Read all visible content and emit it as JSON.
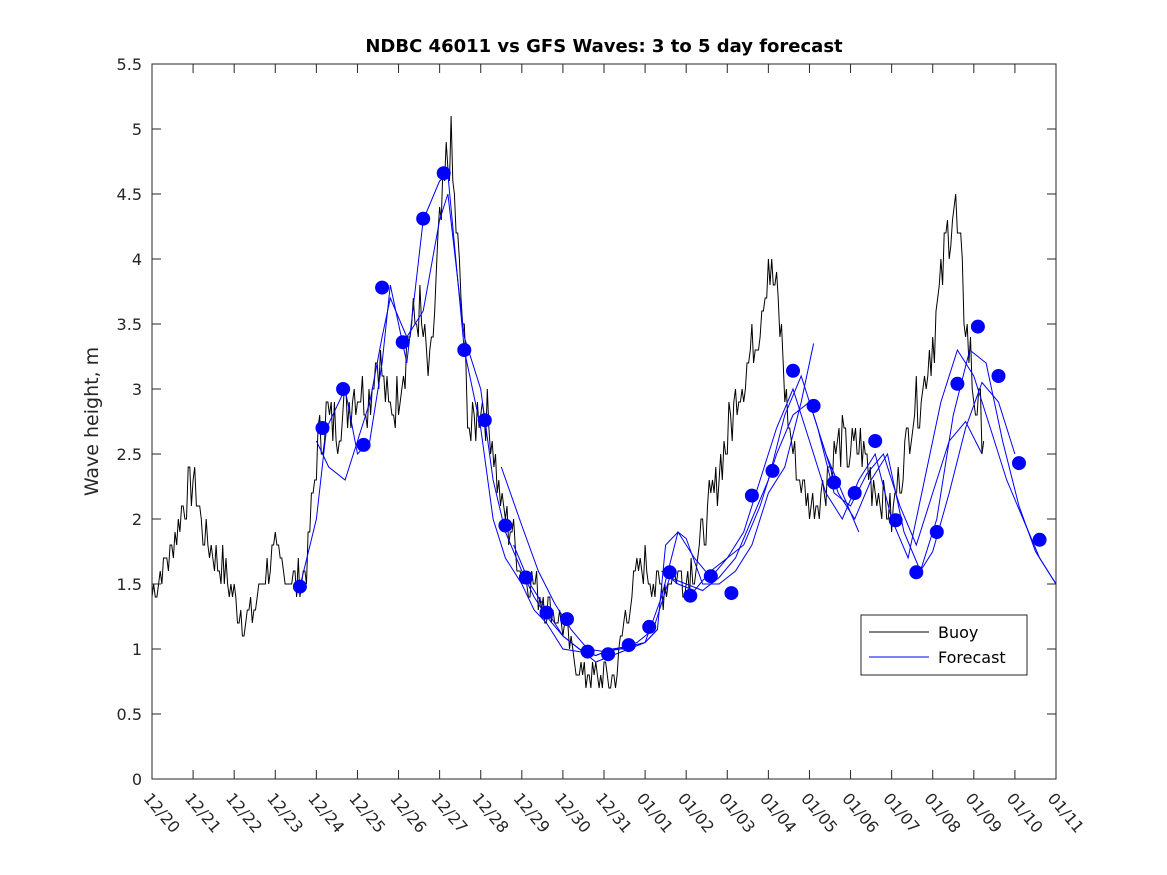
{
  "chart_data": {
    "type": "line",
    "title": "NDBC 46011 vs GFS Waves: 3 to 5 day forecast",
    "xlabel": "",
    "ylabel": "Wave height, m",
    "xlim": [
      0,
      22
    ],
    "ylim": [
      0,
      5.5
    ],
    "yticks": [
      0,
      0.5,
      1,
      1.5,
      2,
      2.5,
      3,
      3.5,
      4,
      4.5,
      5,
      5.5
    ],
    "ytick_labels": [
      "0",
      "0.5",
      "1",
      "1.5",
      "2",
      "2.5",
      "3",
      "3.5",
      "4",
      "4.5",
      "5",
      "5.5"
    ],
    "x_unit": "days since 12/20",
    "xtick_labels": [
      "12/20",
      "12/21",
      "12/22",
      "12/23",
      "12/24",
      "12/25",
      "12/26",
      "12/27",
      "12/28",
      "12/29",
      "12/30",
      "12/31",
      "01/01",
      "01/02",
      "01/03",
      "01/04",
      "01/05",
      "01/06",
      "01/07",
      "01/08",
      "01/09",
      "01/10",
      "01/11"
    ],
    "legend": {
      "position": "lower-right",
      "entries": [
        "Buoy",
        "Forecast"
      ]
    },
    "colors": {
      "buoy": "#000000",
      "forecast": "#0000ff",
      "markers": "#0000ff"
    },
    "series": [
      {
        "name": "Buoy",
        "x": [
          0,
          0.25,
          0.5,
          0.75,
          1,
          1.25,
          1.5,
          1.75,
          2,
          2.25,
          2.5,
          2.75,
          3,
          3.25,
          3.5,
          3.75,
          4,
          4.25,
          4.5,
          4.75,
          5,
          5.25,
          5.5,
          5.75,
          6,
          6.25,
          6.5,
          6.75,
          7,
          7.25,
          7.5,
          7.75,
          8,
          8.25,
          8.5,
          8.75,
          9,
          9.25,
          9.5,
          9.75,
          10,
          10.25,
          10.5,
          10.75,
          11,
          11.25,
          11.5,
          11.75,
          12,
          12.25,
          12.5,
          12.75,
          13,
          13.25,
          13.5,
          13.75,
          14,
          14.25,
          14.5,
          14.75,
          15,
          15.25,
          15.5,
          15.75,
          16,
          16.25,
          16.5,
          16.75,
          17,
          17.25,
          17.5,
          17.75,
          18,
          18.25,
          18.5,
          18.75,
          19,
          19.25,
          19.5,
          19.75,
          20,
          20.25
        ],
        "values": [
          1.45,
          1.6,
          1.8,
          2.1,
          2.3,
          1.9,
          1.75,
          1.6,
          1.4,
          1.2,
          1.3,
          1.6,
          1.7,
          1.6,
          1.5,
          1.6,
          2.5,
          2.8,
          2.7,
          2.9,
          3.0,
          2.9,
          3.3,
          2.8,
          3.0,
          3.4,
          3.6,
          3.0,
          4.2,
          4.9,
          3.8,
          2.6,
          2.9,
          2.7,
          2.1,
          1.9,
          1.6,
          1.5,
          1.4,
          1.3,
          1.2,
          0.95,
          0.8,
          0.8,
          0.8,
          0.75,
          1.2,
          1.5,
          1.7,
          1.45,
          1.5,
          1.6,
          1.55,
          1.7,
          2.0,
          2.3,
          2.6,
          3.0,
          3.2,
          3.5,
          4.0,
          3.6,
          2.7,
          2.3,
          2.1,
          2.2,
          2.4,
          2.6,
          2.5,
          2.6,
          2.3,
          2.2,
          2.0,
          2.4,
          2.8,
          3.0,
          3.4,
          3.9,
          4.5,
          3.7,
          3.0,
          2.7
        ]
      },
      {
        "name": "Forecast",
        "runs": [
          {
            "x": [
              3.6,
              4.0,
              4.25,
              4.7,
              5.0,
              5.3,
              5.6,
              5.8,
              6.2,
              6.6,
              7.0,
              7.2,
              7.6,
              8.0,
              8.3,
              8.6,
              9.0,
              9.3,
              9.6,
              10.0,
              10.4,
              10.8,
              11.2,
              11.6,
              12.0,
              12.3,
              12.5,
              12.8,
              13.0,
              13.4,
              13.8,
              14.2,
              14.6,
              15.0,
              15.4,
              15.8,
              16.1
            ],
            "values": [
              1.48,
              2.0,
              2.7,
              3.0,
              2.5,
              2.6,
              3.2,
              3.8,
              3.2,
              4.3,
              4.6,
              4.65,
              3.3,
              2.7,
              2.0,
              1.7,
              1.5,
              1.3,
              1.2,
              1.0,
              0.98,
              0.95,
              1.0,
              1.0,
              1.05,
              1.15,
              1.8,
              1.9,
              1.85,
              1.5,
              1.5,
              1.6,
              1.8,
              2.2,
              2.4,
              2.9,
              3.35
            ]
          },
          {
            "x": [
              4.0,
              4.3,
              4.7,
              5.0,
              5.3,
              5.6,
              5.8,
              6.2,
              6.6,
              7.0,
              7.2,
              7.6,
              8.0,
              8.3,
              8.6,
              9.0,
              9.3,
              9.6,
              10.0,
              10.4,
              10.8,
              11.2,
              11.6,
              12.0,
              12.4,
              12.8,
              13.2,
              13.6,
              14.0,
              14.4,
              14.8,
              15.2,
              15.6,
              16.0,
              16.4,
              16.8,
              17.2
            ],
            "values": [
              2.6,
              2.4,
              2.3,
              2.6,
              2.9,
              3.4,
              3.7,
              3.4,
              3.6,
              4.3,
              4.5,
              3.4,
              3.0,
              2.3,
              1.9,
              1.6,
              1.4,
              1.25,
              1.1,
              1.0,
              0.95,
              1.0,
              1.02,
              1.05,
              1.4,
              1.9,
              1.7,
              1.55,
              1.7,
              1.8,
              2.1,
              2.5,
              2.8,
              2.9,
              2.5,
              2.2,
              1.9
            ]
          },
          {
            "x": [
              8.5,
              9.0,
              9.4,
              9.8,
              10.2,
              10.6,
              11.0,
              11.4,
              11.8,
              12.2,
              12.6,
              13.0,
              13.4,
              13.8,
              14.2,
              14.6,
              15.0,
              15.4,
              15.8,
              16.2,
              16.6,
              17.0,
              17.4,
              17.8,
              18.2,
              18.6,
              19.0,
              19.4,
              19.8,
              20.2
            ],
            "values": [
              2.4,
              1.95,
              1.6,
              1.35,
              1.15,
              1.0,
              0.98,
              1.0,
              1.05,
              1.15,
              1.55,
              1.5,
              1.45,
              1.55,
              1.7,
              2.0,
              2.3,
              2.8,
              3.1,
              2.7,
              2.2,
              2.1,
              2.35,
              2.5,
              2.1,
              1.8,
              2.2,
              2.6,
              2.75,
              2.5
            ]
          },
          {
            "x": [
              12.4,
              12.8,
              13.2,
              13.6,
              14.0,
              14.4,
              14.8,
              15.2,
              15.6,
              16.0,
              16.4,
              16.8,
              17.2,
              17.6,
              18.0,
              18.4,
              18.8,
              19.2,
              19.6,
              20.0,
              20.4,
              20.8,
              21.2,
              21.6,
              22.0
            ],
            "values": [
              1.6,
              1.5,
              1.45,
              1.6,
              1.7,
              1.9,
              2.3,
              2.7,
              3.0,
              2.6,
              2.2,
              2.0,
              2.3,
              2.5,
              2.0,
              1.7,
              2.3,
              2.9,
              3.3,
              3.1,
              2.7,
              2.3,
              2.0,
              1.7,
              1.5
            ]
          },
          {
            "x": [
              16.3,
              16.7,
              17.1,
              17.5,
              17.9,
              18.3,
              18.7,
              19.1,
              19.5,
              19.9,
              20.3,
              20.7,
              21.1,
              21.5,
              22.0
            ],
            "values": [
              2.6,
              2.2,
              2.0,
              2.3,
              2.5,
              1.9,
              1.6,
              2.0,
              2.8,
              3.3,
              3.2,
              2.6,
              2.1,
              1.75,
              1.5
            ]
          },
          {
            "x": [
              8.8,
              9.2,
              9.6,
              10.0,
              10.4,
              10.8,
              11.2,
              11.6,
              12.0,
              12.3
            ],
            "values": [
              1.8,
              1.5,
              1.3,
              1.1,
              1.0,
              0.9,
              0.95,
              1.0,
              1.05,
              1.15
            ]
          },
          {
            "x": [
              18.6,
              19.0,
              19.4,
              19.8,
              20.2,
              20.6,
              21.0
            ],
            "values": [
              1.55,
              1.75,
              2.2,
              2.7,
              3.05,
              2.9,
              2.5
            ]
          }
        ],
        "markers": {
          "x": [
            3.6,
            4.15,
            4.65,
            5.15,
            5.6,
            6.1,
            6.6,
            7.1,
            7.6,
            8.1,
            8.6,
            9.1,
            9.6,
            10.1,
            10.6,
            11.1,
            11.6,
            12.1,
            12.6,
            13.1,
            13.6,
            14.1,
            14.6,
            15.1,
            15.6,
            16.1,
            16.6,
            17.1,
            17.6,
            18.1,
            18.6,
            19.1,
            19.6,
            20.1,
            20.6,
            21.1,
            21.6
          ],
          "values": [
            1.48,
            2.7,
            3.0,
            2.57,
            3.78,
            3.36,
            4.31,
            4.66,
            3.3,
            2.76,
            1.95,
            1.55,
            1.28,
            1.23,
            0.98,
            0.96,
            1.03,
            1.17,
            1.59,
            1.41,
            1.56,
            1.43,
            2.18,
            2.37,
            3.14,
            2.87,
            2.28,
            2.2,
            2.6,
            1.99,
            1.59,
            1.9,
            3.04,
            3.48,
            3.1,
            2.43,
            1.84
          ]
        }
      }
    ]
  }
}
